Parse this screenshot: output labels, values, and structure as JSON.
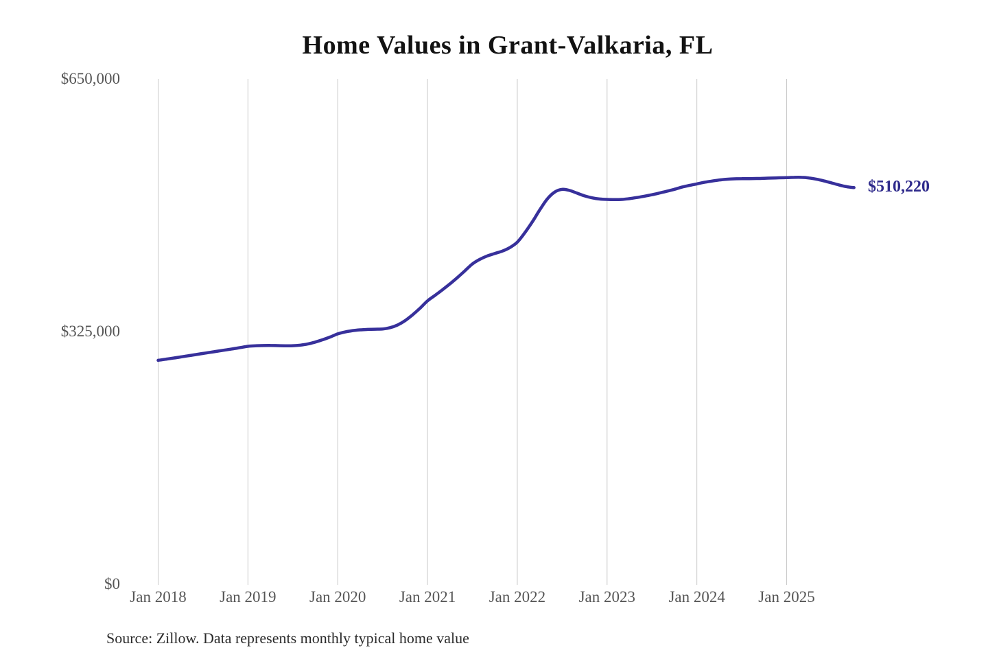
{
  "page": {
    "background_color": "#ffffff"
  },
  "chart": {
    "title": "Home Values in Grant-Valkaria, FL",
    "source_note": "Source: Zillow. Data represents monthly typical home value",
    "end_label": "$510,220",
    "colors": {
      "line": "#37309b",
      "end_label_text": "#2f2b8c",
      "gridline": "#c9c9c9",
      "axis_text": "#555555",
      "title_text": "#121212",
      "source_text": "#2b2b2b"
    }
  },
  "chart_data": {
    "type": "line",
    "title": "Home Values in Grant-Valkaria, FL",
    "xlabel": "",
    "ylabel": "",
    "x_start": "2018-01",
    "x_interval": "monthly",
    "x_end": "2025-10",
    "x_tick_labels": [
      "Jan 2018",
      "Jan 2019",
      "Jan 2020",
      "Jan 2021",
      "Jan 2022",
      "Jan 2023",
      "Jan 2024",
      "Jan 2025"
    ],
    "y_ticks": [
      {
        "label": "$0",
        "value": 0
      },
      {
        "label": "$325,000",
        "value": 325000
      },
      {
        "label": "$650,000",
        "value": 650000
      }
    ],
    "ylim": [
      0,
      650000
    ],
    "grid": "vertical-only",
    "legend": "none",
    "end_value": 510220,
    "end_value_label": "$510,220",
    "series": [
      {
        "name": "Monthly typical home value",
        "values": [
          288000,
          289400,
          290800,
          292300,
          293800,
          295300,
          296800,
          298300,
          299800,
          301300,
          302800,
          304400,
          306000,
          306600,
          307000,
          307100,
          306900,
          306700,
          306800,
          307500,
          309000,
          311500,
          314500,
          318000,
          322000,
          324500,
          326200,
          327200,
          327700,
          328000,
          328300,
          330000,
          333500,
          339000,
          346500,
          355000,
          364500,
          371500,
          378800,
          386400,
          394500,
          403200,
          412000,
          418000,
          422300,
          425500,
          428500,
          433000,
          440000,
          452000,
          466000,
          481500,
          495500,
          504500,
          508000,
          506500,
          503000,
          499500,
          497000,
          495500,
          495000,
          494700,
          495000,
          496000,
          497500,
          499200,
          501000,
          503200,
          505500,
          508000,
          510800,
          513000,
          515000,
          517000,
          518600,
          520000,
          521000,
          521500,
          521700,
          521700,
          521900,
          522200,
          522500,
          522800,
          523000,
          523400,
          523400,
          522600,
          521000,
          518800,
          516200,
          513600,
          511400,
          510220
        ]
      }
    ]
  }
}
